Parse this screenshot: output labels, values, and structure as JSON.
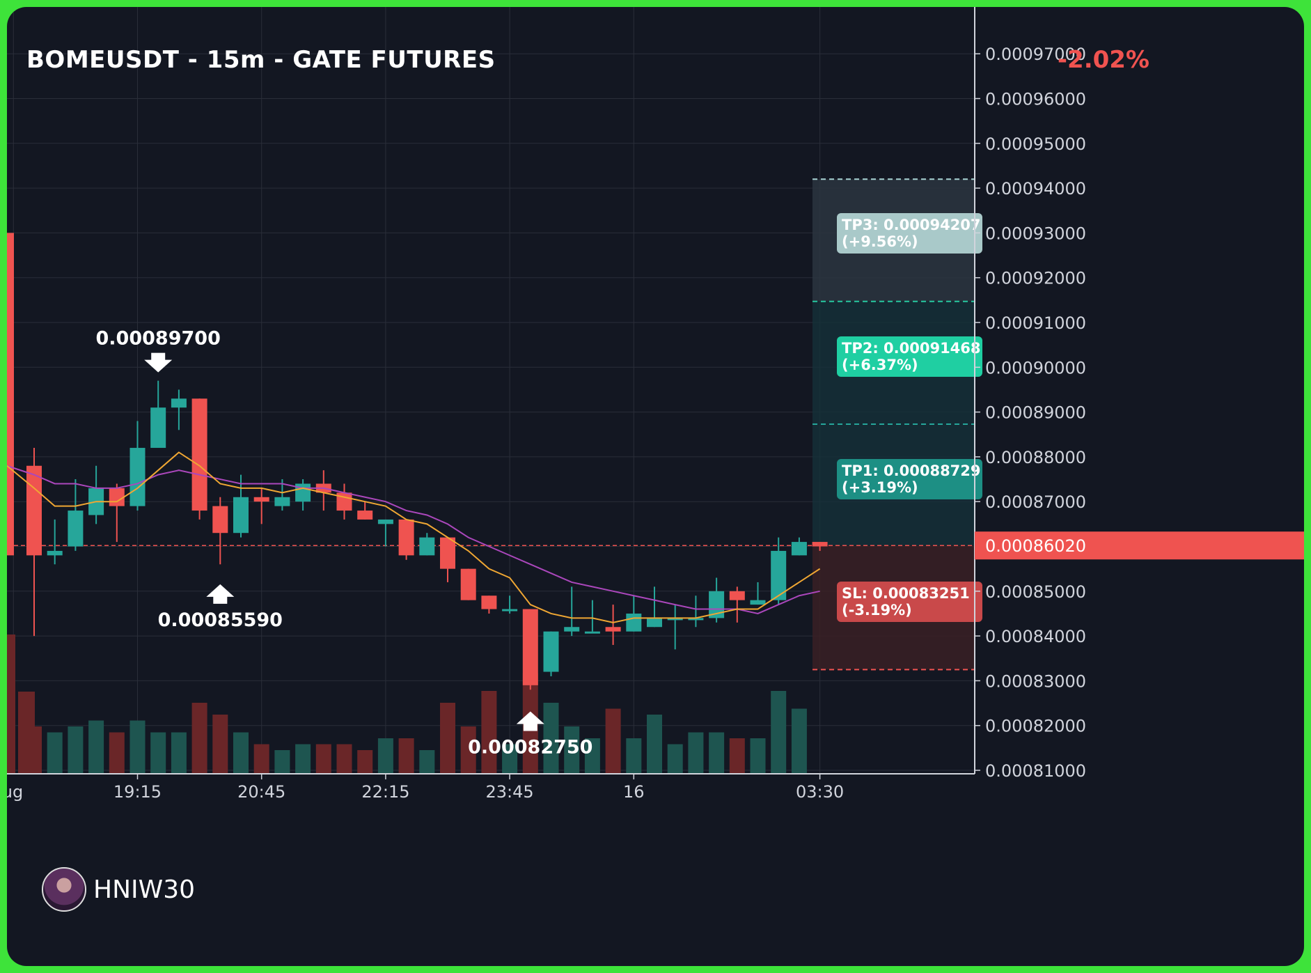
{
  "title": "BOMEUSDT - 15m - GATE FUTURES",
  "change_text": "-2.02%",
  "watermark": "HNIW30",
  "colors": {
    "background": "#131722",
    "up": "#26a69a",
    "down": "#ef5350",
    "ema_fast": "#f0a733",
    "ema_slow": "#ab47bc",
    "grid": "#2a2e39",
    "axis_text": "#d1d4dc",
    "frame": "#3ee33a"
  },
  "chart_data": {
    "type": "candlestick",
    "y_range": [
      0.000805,
      0.000975
    ],
    "y_ticks": [
      "0.00097000",
      "0.00096000",
      "0.00095000",
      "0.00094000",
      "0.00093000",
      "0.00092000",
      "0.00091000",
      "0.00090000",
      "0.00089000",
      "0.00088000",
      "0.00087000",
      "0.00086000",
      "0.00085000",
      "0.00084000",
      "0.00083000",
      "0.00082000",
      "0.00081000"
    ],
    "x_tick_labels": [
      {
        "label": "ug",
        "index": -1
      },
      {
        "label": "19:15",
        "index": 5
      },
      {
        "label": "20:45",
        "index": 11
      },
      {
        "label": "22:15",
        "index": 17
      },
      {
        "label": "23:45",
        "index": 23
      },
      {
        "label": "16",
        "index": 29
      },
      {
        "label": "03:30",
        "index": 38
      }
    ],
    "candles": [
      {
        "o": 0.000878,
        "h": 0.000882,
        "l": 0.00084,
        "c": 0.000858,
        "v": 8
      },
      {
        "o": 0.000858,
        "h": 0.000866,
        "l": 0.000856,
        "c": 0.000859,
        "v": 7
      },
      {
        "o": 0.00086,
        "h": 0.000875,
        "l": 0.000859,
        "c": 0.000868,
        "v": 8
      },
      {
        "o": 0.000867,
        "h": 0.000878,
        "l": 0.000865,
        "c": 0.000873,
        "v": 9
      },
      {
        "o": 0.000873,
        "h": 0.000874,
        "l": 0.000861,
        "c": 0.000869,
        "v": 7
      },
      {
        "o": 0.000869,
        "h": 0.000888,
        "l": 0.000868,
        "c": 0.000882,
        "v": 9
      },
      {
        "o": 0.000882,
        "h": 0.000897,
        "l": 0.000882,
        "c": 0.000891,
        "v": 7
      },
      {
        "o": 0.000891,
        "h": 0.000895,
        "l": 0.000886,
        "c": 0.000893,
        "v": 7
      },
      {
        "o": 0.000893,
        "h": 0.000893,
        "l": 0.000866,
        "c": 0.000868,
        "v": 12
      },
      {
        "o": 0.000869,
        "h": 0.000871,
        "l": 0.000856,
        "c": 0.000863,
        "v": 10
      },
      {
        "o": 0.000863,
        "h": 0.000876,
        "l": 0.000862,
        "c": 0.000871,
        "v": 7
      },
      {
        "o": 0.000871,
        "h": 0.000873,
        "l": 0.000865,
        "c": 0.00087,
        "v": 5
      },
      {
        "o": 0.000869,
        "h": 0.000875,
        "l": 0.000868,
        "c": 0.000871,
        "v": 4
      },
      {
        "o": 0.00087,
        "h": 0.000875,
        "l": 0.000868,
        "c": 0.000874,
        "v": 5
      },
      {
        "o": 0.000874,
        "h": 0.000877,
        "l": 0.000868,
        "c": 0.000872,
        "v": 5
      },
      {
        "o": 0.000872,
        "h": 0.000874,
        "l": 0.000866,
        "c": 0.000868,
        "v": 5
      },
      {
        "o": 0.000868,
        "h": 0.00087,
        "l": 0.000866,
        "c": 0.000866,
        "v": 4
      },
      {
        "o": 0.000865,
        "h": 0.000866,
        "l": 0.00086,
        "c": 0.000866,
        "v": 6
      },
      {
        "o": 0.000866,
        "h": 0.000866,
        "l": 0.000857,
        "c": 0.000858,
        "v": 6
      },
      {
        "o": 0.000858,
        "h": 0.000863,
        "l": 0.000858,
        "c": 0.000862,
        "v": 4
      },
      {
        "o": 0.000862,
        "h": 0.000862,
        "l": 0.000852,
        "c": 0.000855,
        "v": 12
      },
      {
        "o": 0.000855,
        "h": 0.000855,
        "l": 0.000848,
        "c": 0.000848,
        "v": 8
      },
      {
        "o": 0.000849,
        "h": 0.000849,
        "l": 0.000845,
        "c": 0.000846,
        "v": 14
      },
      {
        "o": 0.000846,
        "h": 0.000849,
        "l": 0.000845,
        "c": 0.000846,
        "v": 5
      },
      {
        "o": 0.000846,
        "h": 0.000846,
        "l": 0.000828,
        "c": 0.000829,
        "v": 17
      },
      {
        "o": 0.000832,
        "h": 0.000841,
        "l": 0.000831,
        "c": 0.000841,
        "v": 12
      },
      {
        "o": 0.000841,
        "h": 0.000851,
        "l": 0.00084,
        "c": 0.000842,
        "v": 8
      },
      {
        "o": 0.000841,
        "h": 0.000848,
        "l": 0.000841,
        "c": 0.000841,
        "v": 6
      },
      {
        "o": 0.000842,
        "h": 0.000847,
        "l": 0.000838,
        "c": 0.000841,
        "v": 11
      },
      {
        "o": 0.000841,
        "h": 0.000849,
        "l": 0.000841,
        "c": 0.000845,
        "v": 6
      },
      {
        "o": 0.000842,
        "h": 0.000851,
        "l": 0.000842,
        "c": 0.000844,
        "v": 10
      },
      {
        "o": 0.000844,
        "h": 0.000847,
        "l": 0.000837,
        "c": 0.000844,
        "v": 5
      },
      {
        "o": 0.000844,
        "h": 0.000849,
        "l": 0.000842,
        "c": 0.000844,
        "v": 7
      },
      {
        "o": 0.000844,
        "h": 0.000853,
        "l": 0.000843,
        "c": 0.00085,
        "v": 7
      },
      {
        "o": 0.00085,
        "h": 0.000851,
        "l": 0.000843,
        "c": 0.000848,
        "v": 6
      },
      {
        "o": 0.000847,
        "h": 0.000852,
        "l": 0.000847,
        "c": 0.000848,
        "v": 6
      },
      {
        "o": 0.000848,
        "h": 0.000862,
        "l": 0.000847,
        "c": 0.000859,
        "v": 14
      },
      {
        "o": 0.000858,
        "h": 0.000862,
        "l": 0.000858,
        "c": 0.000861,
        "v": 11
      },
      {
        "o": 0.000861,
        "h": 0.000861,
        "l": 0.000859,
        "c": 0.00086,
        "v": 0
      }
    ],
    "partial_candle": {
      "o": 0.00093,
      "h": 0.00093,
      "l": 0.000858,
      "c": 0.000858
    },
    "ema_fast": [
      0.000873,
      0.000869,
      0.000869,
      0.00087,
      0.00087,
      0.000873,
      0.000877,
      0.000881,
      0.000878,
      0.000874,
      0.000873,
      0.000873,
      0.000872,
      0.000873,
      0.000872,
      0.000871,
      0.00087,
      0.000869,
      0.000866,
      0.000865,
      0.000862,
      0.000859,
      0.000855,
      0.000853,
      0.000847,
      0.000845,
      0.000844,
      0.000844,
      0.000843,
      0.000844,
      0.000844,
      0.000844,
      0.000844,
      0.000845,
      0.000846,
      0.000846,
      0.000849,
      0.000852,
      0.000855
    ],
    "ema_slow": [
      0.000876,
      0.000874,
      0.000874,
      0.000873,
      0.000873,
      0.000874,
      0.000876,
      0.000877,
      0.000876,
      0.000875,
      0.000874,
      0.000874,
      0.000874,
      0.000873,
      0.000873,
      0.000872,
      0.000871,
      0.00087,
      0.000868,
      0.000867,
      0.000865,
      0.000862,
      0.00086,
      0.000858,
      0.000856,
      0.000854,
      0.000852,
      0.000851,
      0.00085,
      0.000849,
      0.000848,
      0.000847,
      0.000846,
      0.000846,
      0.000846,
      0.000845,
      0.000847,
      0.000849,
      0.00085
    ],
    "annotations": [
      {
        "label": "0.00089700",
        "price": 0.000897,
        "index": 6,
        "side": "above"
      },
      {
        "label": "0.00085590",
        "price": 0.0008559,
        "index": 9,
        "side": "below"
      },
      {
        "label": "0.00082750",
        "price": 0.0008275,
        "index": 24,
        "side": "below"
      }
    ],
    "current_price": {
      "label": "0.00086020",
      "value": 0.0008602
    },
    "levels": [
      {
        "name": "TP3",
        "line_value": 0.000942,
        "label_line1": "TP3: 0.00094207",
        "label_line2": "(+9.56%)",
        "box_fill": "#a9c9c9",
        "line_color": "#a9d4d4"
      },
      {
        "name": "TP2",
        "line_value": 0.0009147,
        "label_line1": "TP2: 0.00091468",
        "label_line2": "(+6.37%)",
        "box_fill": "#1fcfa2",
        "line_color": "#26c9a0"
      },
      {
        "name": "TP1",
        "line_value": 0.0008873,
        "label_line1": "TP1: 0.00088729",
        "label_line2": "(+3.19%)",
        "box_fill": "#1d8f84",
        "line_color": "#26a69a"
      },
      {
        "name": "SL",
        "line_value": 0.0008325,
        "label_line1": "SL: 0.00083251",
        "label_line2": "(-3.19%)",
        "box_fill": "#c9494a",
        "line_color": "#ef5350"
      }
    ],
    "grid": true
  }
}
